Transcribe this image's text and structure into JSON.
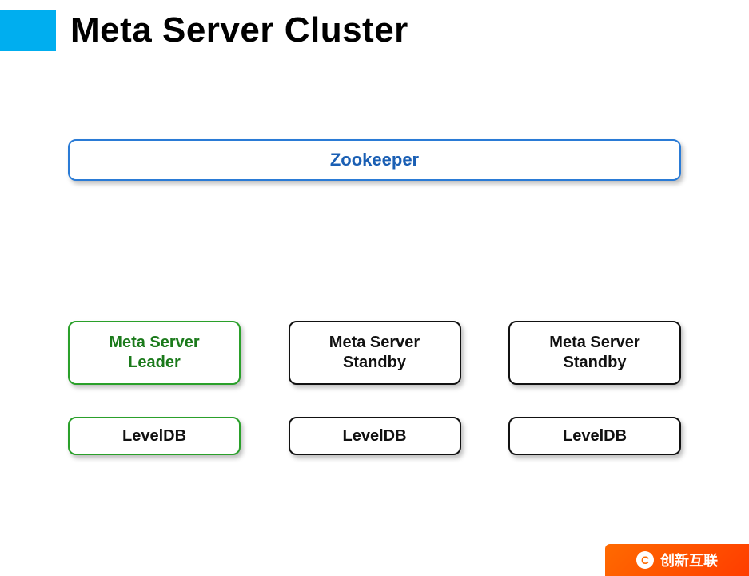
{
  "title": "Meta Server Cluster",
  "accent_color": "#00aeef",
  "zookeeper": {
    "label": "Zookeeper",
    "border_color": "#2a7bd6",
    "text_color": "#1a5fb4",
    "background": "#ffffff"
  },
  "servers": [
    {
      "label": "Meta Server\nLeader",
      "border_color": "#2aa02a",
      "text_color": "#1b7a1b",
      "background": "#ffffff"
    },
    {
      "label": "Meta Server\nStandby",
      "border_color": "#111111",
      "text_color": "#111111",
      "background": "#ffffff"
    },
    {
      "label": "Meta Server\nStandby",
      "border_color": "#111111",
      "text_color": "#111111",
      "background": "#ffffff"
    }
  ],
  "databases": [
    {
      "label": "LevelDB",
      "border_color": "#2aa02a",
      "text_color": "#111111",
      "background": "#ffffff"
    },
    {
      "label": "LevelDB",
      "border_color": "#111111",
      "text_color": "#111111",
      "background": "#ffffff"
    },
    {
      "label": "LevelDB",
      "border_color": "#111111",
      "text_color": "#111111",
      "background": "#ffffff"
    }
  ],
  "styling": {
    "title_fontsize": 44,
    "title_color": "#000000",
    "box_border_radius": 10,
    "box_border_width": 2,
    "box_shadow": "3px 4px 6px rgba(0,0,0,0.25)",
    "zookeeper_height": 52,
    "server_box_width": 216,
    "server_box_height": 80,
    "db_box_width": 216,
    "db_box_height": 48,
    "font_family": "Comic Sans MS",
    "background_color": "#ffffff",
    "gap_title_to_zookeeper": 110,
    "gap_zookeeper_to_servers": 175,
    "gap_servers_to_db": 40
  },
  "watermark": {
    "label": "创新互联",
    "icon_text": "C",
    "bg_gradient_start": "#ff6a00",
    "bg_gradient_end": "#ff3d00",
    "text_color": "#ffffff"
  }
}
